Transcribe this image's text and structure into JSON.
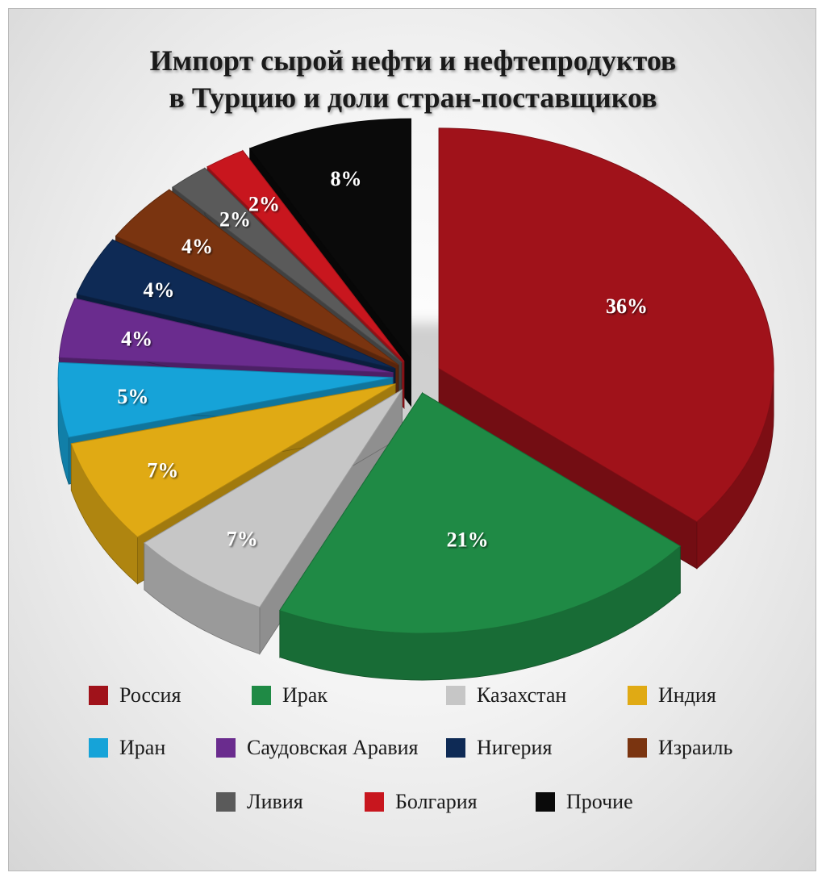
{
  "chart_data": {
    "type": "pie",
    "title_lines": [
      "Импорт сырой нефти и нефтепродуктов",
      "в Турцию и доли стран-поставщиков"
    ],
    "slices": [
      {
        "label": "Россия",
        "value": 36,
        "text": "36%",
        "color": "#a0121a"
      },
      {
        "label": "Ирак",
        "value": 21,
        "text": "21%",
        "color": "#1f8a45"
      },
      {
        "label": "Казахстан",
        "value": 7,
        "text": "7%",
        "color": "#c6c6c6"
      },
      {
        "label": "Индия",
        "value": 7,
        "text": "7%",
        "color": "#e0aa14"
      },
      {
        "label": "Иран",
        "value": 5,
        "text": "5%",
        "color": "#16a3d8"
      },
      {
        "label": "Саудовская Аравия",
        "value": 4,
        "text": "4%",
        "color": "#6a2c8e"
      },
      {
        "label": "Нигерия",
        "value": 4,
        "text": "4%",
        "color": "#0e2a55"
      },
      {
        "label": "Израиль",
        "value": 4,
        "text": "4%",
        "color": "#7a3410"
      },
      {
        "label": "Ливия",
        "value": 2,
        "text": "2%",
        "color": "#5a5a5a"
      },
      {
        "label": "Болгария",
        "value": 2,
        "text": "2%",
        "color": "#c8161e"
      },
      {
        "label": "Прочие",
        "value": 8,
        "text": "8%",
        "color": "#0a0a0a"
      }
    ],
    "legend_position": "bottom",
    "style": "3d-exploded"
  }
}
